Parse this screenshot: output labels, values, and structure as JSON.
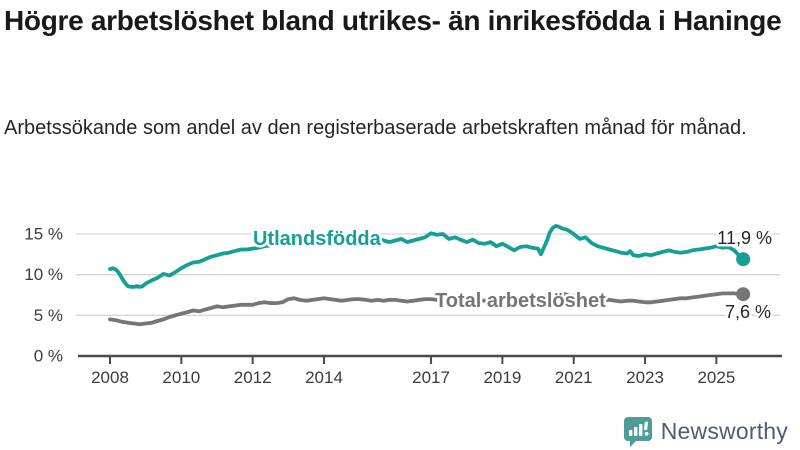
{
  "header": {
    "title": "Högre arbetslöshet bland utrikes- än inrikesfödda i Haninge",
    "subtitle": "Arbetssökande som andel av den registerbaserade arbetskraften månad för månad."
  },
  "chart_data": {
    "type": "line",
    "title": "Högre arbetslöshet bland utrikes- än inrikesfödda i Haninge",
    "xlabel": "",
    "ylabel": "",
    "grid": "horizontal",
    "legend_position": "inline-labels",
    "xlim": [
      2008,
      2026
    ],
    "ylim": [
      0,
      17.5
    ],
    "x_ticks": [
      2008,
      2010,
      2012,
      2014,
      2017,
      2019,
      2021,
      2023,
      2025
    ],
    "y_ticks": [
      {
        "value": 15,
        "label": "15 %"
      },
      {
        "value": 10,
        "label": "10 %"
      },
      {
        "value": 5,
        "label": "5 %"
      },
      {
        "value": 0,
        "label": "0 %"
      }
    ],
    "series": [
      {
        "name": "Utlandsfödda",
        "color": "#14a096",
        "end_label": "11,9 %",
        "end_value": 11.9,
        "points": [
          [
            2008.0,
            10.7
          ],
          [
            2008.08,
            10.8
          ],
          [
            2008.17,
            10.6
          ],
          [
            2008.25,
            10.2
          ],
          [
            2008.33,
            9.6
          ],
          [
            2008.42,
            9.0
          ],
          [
            2008.5,
            8.6
          ],
          [
            2008.58,
            8.5
          ],
          [
            2008.67,
            8.5
          ],
          [
            2008.75,
            8.6
          ],
          [
            2008.83,
            8.5
          ],
          [
            2008.92,
            8.6
          ],
          [
            2009.0,
            8.9
          ],
          [
            2009.17,
            9.3
          ],
          [
            2009.33,
            9.6
          ],
          [
            2009.5,
            10.1
          ],
          [
            2009.58,
            10.0
          ],
          [
            2009.67,
            9.9
          ],
          [
            2009.83,
            10.3
          ],
          [
            2010.0,
            10.8
          ],
          [
            2010.17,
            11.2
          ],
          [
            2010.33,
            11.5
          ],
          [
            2010.5,
            11.6
          ],
          [
            2010.67,
            11.9
          ],
          [
            2010.83,
            12.2
          ],
          [
            2011.0,
            12.4
          ],
          [
            2011.17,
            12.6
          ],
          [
            2011.33,
            12.7
          ],
          [
            2011.5,
            12.9
          ],
          [
            2011.67,
            13.1
          ],
          [
            2011.83,
            13.1
          ],
          [
            2012.0,
            13.2
          ],
          [
            2012.17,
            13.3
          ],
          [
            2012.33,
            13.5
          ],
          [
            2012.5,
            13.6
          ],
          [
            2012.67,
            13.7
          ],
          [
            2012.83,
            13.8
          ],
          [
            2013.0,
            14.0
          ],
          [
            2013.17,
            14.1
          ],
          [
            2013.33,
            14.0
          ],
          [
            2013.5,
            14.1
          ],
          [
            2013.67,
            14.2
          ],
          [
            2013.83,
            14.3
          ],
          [
            2014.0,
            14.3
          ],
          [
            2014.17,
            14.2
          ],
          [
            2014.33,
            14.3
          ],
          [
            2014.5,
            14.0
          ],
          [
            2014.67,
            14.3
          ],
          [
            2014.83,
            14.4
          ],
          [
            2015.0,
            14.4
          ],
          [
            2015.17,
            14.5
          ],
          [
            2015.33,
            14.7
          ],
          [
            2015.5,
            14.5
          ],
          [
            2015.67,
            14.2
          ],
          [
            2015.83,
            14.0
          ],
          [
            2016.0,
            14.2
          ],
          [
            2016.17,
            14.4
          ],
          [
            2016.33,
            14.0
          ],
          [
            2016.5,
            14.2
          ],
          [
            2016.67,
            14.4
          ],
          [
            2016.83,
            14.6
          ],
          [
            2017.0,
            15.1
          ],
          [
            2017.17,
            14.9
          ],
          [
            2017.33,
            15.0
          ],
          [
            2017.5,
            14.4
          ],
          [
            2017.67,
            14.6
          ],
          [
            2017.83,
            14.3
          ],
          [
            2018.0,
            14.0
          ],
          [
            2018.17,
            14.3
          ],
          [
            2018.33,
            13.9
          ],
          [
            2018.5,
            13.8
          ],
          [
            2018.67,
            14.0
          ],
          [
            2018.83,
            13.5
          ],
          [
            2019.0,
            13.8
          ],
          [
            2019.17,
            13.4
          ],
          [
            2019.33,
            13.0
          ],
          [
            2019.5,
            13.4
          ],
          [
            2019.67,
            13.5
          ],
          [
            2019.83,
            13.3
          ],
          [
            2020.0,
            13.2
          ],
          [
            2020.08,
            12.5
          ],
          [
            2020.25,
            14.2
          ],
          [
            2020.33,
            15.2
          ],
          [
            2020.42,
            15.8
          ],
          [
            2020.5,
            16.0
          ],
          [
            2020.58,
            15.9
          ],
          [
            2020.67,
            15.7
          ],
          [
            2020.83,
            15.5
          ],
          [
            2021.0,
            15.0
          ],
          [
            2021.17,
            14.4
          ],
          [
            2021.33,
            14.6
          ],
          [
            2021.5,
            13.9
          ],
          [
            2021.67,
            13.5
          ],
          [
            2021.83,
            13.3
          ],
          [
            2022.0,
            13.1
          ],
          [
            2022.17,
            12.9
          ],
          [
            2022.33,
            12.7
          ],
          [
            2022.5,
            12.6
          ],
          [
            2022.58,
            12.9
          ],
          [
            2022.67,
            12.4
          ],
          [
            2022.83,
            12.3
          ],
          [
            2023.0,
            12.5
          ],
          [
            2023.17,
            12.4
          ],
          [
            2023.33,
            12.6
          ],
          [
            2023.5,
            12.8
          ],
          [
            2023.67,
            13.0
          ],
          [
            2023.83,
            12.8
          ],
          [
            2024.0,
            12.7
          ],
          [
            2024.17,
            12.8
          ],
          [
            2024.33,
            13.0
          ],
          [
            2024.5,
            13.1
          ],
          [
            2024.67,
            13.2
          ],
          [
            2024.83,
            13.3
          ],
          [
            2025.0,
            13.5
          ],
          [
            2025.17,
            13.3
          ],
          [
            2025.33,
            13.4
          ],
          [
            2025.5,
            13.0
          ],
          [
            2025.58,
            12.6
          ],
          [
            2025.67,
            12.2
          ],
          [
            2025.75,
            11.9
          ]
        ]
      },
      {
        "name": "Total arbetslöshet",
        "color": "#76767a",
        "end_label": "7,6 %",
        "end_value": 7.6,
        "points": [
          [
            2008.0,
            4.5
          ],
          [
            2008.17,
            4.4
          ],
          [
            2008.33,
            4.2
          ],
          [
            2008.5,
            4.1
          ],
          [
            2008.67,
            4.0
          ],
          [
            2008.83,
            3.9
          ],
          [
            2009.0,
            4.0
          ],
          [
            2009.17,
            4.1
          ],
          [
            2009.33,
            4.3
          ],
          [
            2009.5,
            4.5
          ],
          [
            2009.67,
            4.8
          ],
          [
            2009.83,
            5.0
          ],
          [
            2010.0,
            5.2
          ],
          [
            2010.17,
            5.4
          ],
          [
            2010.33,
            5.6
          ],
          [
            2010.5,
            5.5
          ],
          [
            2010.67,
            5.7
          ],
          [
            2010.83,
            5.9
          ],
          [
            2011.0,
            6.1
          ],
          [
            2011.17,
            6.0
          ],
          [
            2011.33,
            6.1
          ],
          [
            2011.5,
            6.2
          ],
          [
            2011.67,
            6.3
          ],
          [
            2011.83,
            6.3
          ],
          [
            2012.0,
            6.3
          ],
          [
            2012.17,
            6.5
          ],
          [
            2012.33,
            6.6
          ],
          [
            2012.5,
            6.5
          ],
          [
            2012.67,
            6.5
          ],
          [
            2012.83,
            6.6
          ],
          [
            2013.0,
            7.0
          ],
          [
            2013.17,
            7.1
          ],
          [
            2013.33,
            6.9
          ],
          [
            2013.5,
            6.8
          ],
          [
            2013.67,
            6.9
          ],
          [
            2013.83,
            7.0
          ],
          [
            2014.0,
            7.1
          ],
          [
            2014.17,
            7.0
          ],
          [
            2014.33,
            6.9
          ],
          [
            2014.5,
            6.8
          ],
          [
            2014.67,
            6.9
          ],
          [
            2014.83,
            7.0
          ],
          [
            2015.0,
            7.0
          ],
          [
            2015.17,
            6.9
          ],
          [
            2015.33,
            6.8
          ],
          [
            2015.5,
            6.9
          ],
          [
            2015.67,
            6.8
          ],
          [
            2015.83,
            6.9
          ],
          [
            2016.0,
            6.9
          ],
          [
            2016.17,
            6.8
          ],
          [
            2016.33,
            6.7
          ],
          [
            2016.5,
            6.8
          ],
          [
            2016.67,
            6.9
          ],
          [
            2016.83,
            7.0
          ],
          [
            2017.0,
            7.0
          ],
          [
            2017.17,
            6.9
          ],
          [
            2017.33,
            7.0
          ],
          [
            2017.5,
            7.1
          ],
          [
            2017.67,
            7.0
          ],
          [
            2017.83,
            7.0
          ],
          [
            2018.0,
            6.9
          ],
          [
            2018.17,
            7.0
          ],
          [
            2018.33,
            6.9
          ],
          [
            2018.5,
            6.8
          ],
          [
            2018.67,
            6.9
          ],
          [
            2018.83,
            6.9
          ],
          [
            2019.0,
            7.0
          ],
          [
            2019.17,
            7.1
          ],
          [
            2019.33,
            7.0
          ],
          [
            2019.5,
            7.1
          ],
          [
            2019.67,
            7.2
          ],
          [
            2019.83,
            7.2
          ],
          [
            2020.0,
            7.2
          ],
          [
            2020.17,
            7.3
          ],
          [
            2020.33,
            7.6
          ],
          [
            2020.5,
            7.8
          ],
          [
            2020.67,
            7.7
          ],
          [
            2020.83,
            7.5
          ],
          [
            2021.0,
            7.4
          ],
          [
            2021.17,
            7.3
          ],
          [
            2021.33,
            7.2
          ],
          [
            2021.5,
            7.1
          ],
          [
            2021.67,
            7.0
          ],
          [
            2021.83,
            6.9
          ],
          [
            2022.0,
            6.9
          ],
          [
            2022.17,
            6.8
          ],
          [
            2022.33,
            6.7
          ],
          [
            2022.5,
            6.8
          ],
          [
            2022.67,
            6.8
          ],
          [
            2022.83,
            6.7
          ],
          [
            2023.0,
            6.6
          ],
          [
            2023.17,
            6.6
          ],
          [
            2023.33,
            6.7
          ],
          [
            2023.5,
            6.8
          ],
          [
            2023.67,
            6.9
          ],
          [
            2023.83,
            7.0
          ],
          [
            2024.0,
            7.1
          ],
          [
            2024.17,
            7.1
          ],
          [
            2024.33,
            7.2
          ],
          [
            2024.5,
            7.3
          ],
          [
            2024.67,
            7.4
          ],
          [
            2024.83,
            7.5
          ],
          [
            2025.0,
            7.6
          ],
          [
            2025.17,
            7.7
          ],
          [
            2025.33,
            7.7
          ],
          [
            2025.5,
            7.7
          ],
          [
            2025.67,
            7.6
          ],
          [
            2025.75,
            7.6
          ]
        ]
      }
    ],
    "colors": {
      "accent_teal": "#14a096",
      "series_gray": "#76767a",
      "gridline": "#d6d6d6",
      "axis": "#4b4b4b",
      "text_dark": "#191919",
      "brand_icon": "#4d9d96",
      "brand_text": "#4b5e74"
    }
  },
  "footer": {
    "brand": "Newsworthy"
  }
}
